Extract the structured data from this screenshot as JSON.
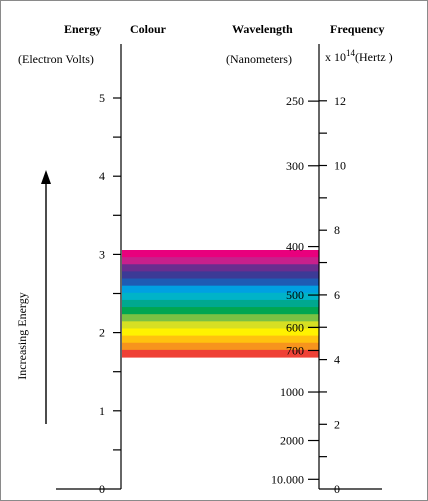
{
  "headers": {
    "energy": "Energy",
    "colour": "Colour",
    "wavelength": "Wavelength",
    "frequency": "Frequency",
    "energy_unit": "(Electron Volts)",
    "wavelength_unit": "(Nanometers)",
    "frequency_unit_prefix": "x 10",
    "frequency_unit_exponent": "14",
    "frequency_unit_suffix": "(Hertz )"
  },
  "arrow_label": "Increasing Energy",
  "axes": {
    "energy_labels": [
      "5",
      "4",
      "3",
      "2",
      "1",
      "0"
    ],
    "wavelength_labels": [
      "250",
      "300",
      "400",
      "500",
      "600",
      "700",
      "1000",
      "2000",
      "10.000"
    ],
    "frequency_labels": [
      "12",
      "10",
      "8",
      "6",
      "4",
      "2",
      "0"
    ]
  },
  "colors": {
    "band_stripes": [
      "#e9007d",
      "#c8208c",
      "#6a2d8f",
      "#3c3a96",
      "#1e5cb4",
      "#00a0e2",
      "#00b3c8",
      "#00a88f",
      "#00a651",
      "#7ac143",
      "#d7df23",
      "#fff200",
      "#ffc20e",
      "#f7941d",
      "#ef4136"
    ],
    "axis": "#000000"
  }
}
